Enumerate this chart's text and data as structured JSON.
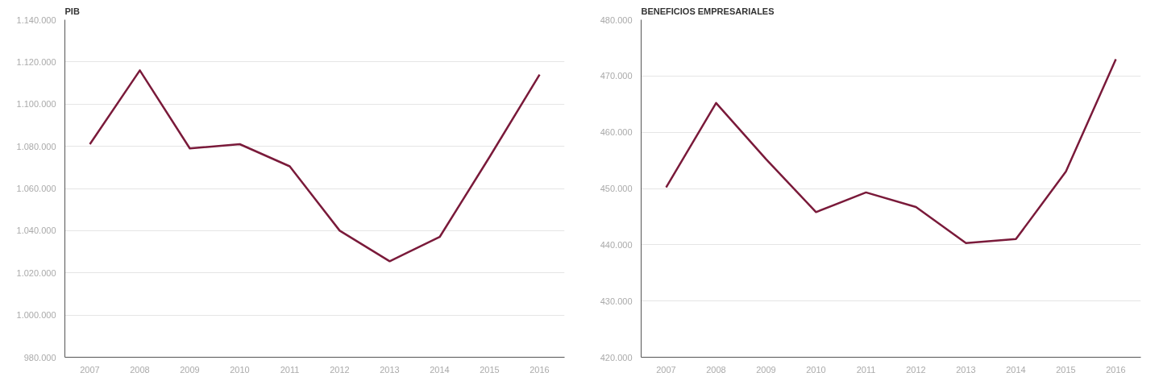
{
  "chart_data": [
    {
      "type": "line",
      "title": "PIB",
      "categories": [
        "2007",
        "2008",
        "2009",
        "2010",
        "2011",
        "2012",
        "2013",
        "2014",
        "2015",
        "2016"
      ],
      "series": [
        {
          "color": "#7a1a3a",
          "values": [
            1081000,
            1116000,
            1079000,
            1081000,
            1070500,
            1040000,
            1025500,
            1037000,
            1075000,
            1114000
          ]
        }
      ],
      "ylim": [
        980000,
        1140000
      ],
      "yticks": [
        {
          "value": 980000,
          "label": "980.000"
        },
        {
          "value": 1000000,
          "label": "1.000.000"
        },
        {
          "value": 1020000,
          "label": "1.020.000"
        },
        {
          "value": 1040000,
          "label": "1.040.000"
        },
        {
          "value": 1060000,
          "label": "1.060.000"
        },
        {
          "value": 1080000,
          "label": "1.080.000"
        },
        {
          "value": 1100000,
          "label": "1.100.000"
        },
        {
          "value": 1120000,
          "label": "1.120.000"
        },
        {
          "value": 1140000,
          "label": "1.140.000"
        }
      ],
      "grid": "y",
      "marker": "none",
      "line_style": "solid"
    },
    {
      "type": "line",
      "title": "BENEFICIOS EMPRESARIALES",
      "categories": [
        "2007",
        "2008",
        "2009",
        "2010",
        "2011",
        "2012",
        "2013",
        "2014",
        "2015",
        "2016"
      ],
      "series": [
        {
          "color": "#7a1a3a",
          "values": [
            450200,
            465200,
            455200,
            445800,
            449300,
            446700,
            440300,
            441000,
            453000,
            473000
          ]
        }
      ],
      "ylim": [
        420000,
        480000
      ],
      "yticks": [
        {
          "value": 420000,
          "label": "420.000"
        },
        {
          "value": 430000,
          "label": "430.000"
        },
        {
          "value": 440000,
          "label": "440.000"
        },
        {
          "value": 450000,
          "label": "450.000"
        },
        {
          "value": 460000,
          "label": "460.000"
        },
        {
          "value": 470000,
          "label": "470.000"
        },
        {
          "value": 480000,
          "label": "480.000"
        }
      ],
      "grid": "y",
      "marker": "none",
      "line_style": "solid"
    }
  ]
}
